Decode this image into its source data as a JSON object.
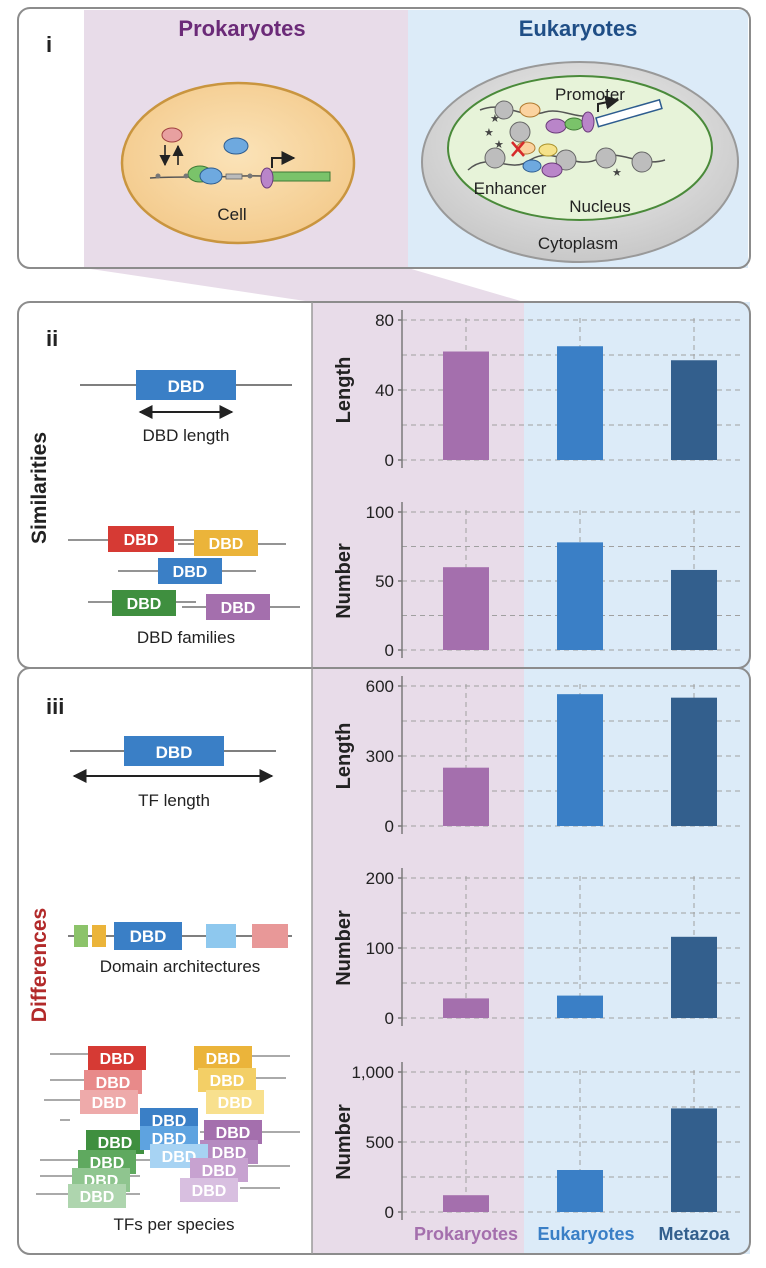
{
  "panel_i": {
    "label": "i",
    "prokaryotes_title": "Prokaryotes",
    "eukaryotes_title": "Eukaryotes",
    "cell_label": "Cell",
    "promoter_label": "Promoter",
    "enhancer_label": "Enhancer",
    "nucleus_label": "Nucleus",
    "cytoplasm_label": "Cytoplasm"
  },
  "panel_ii": {
    "label": "ii",
    "side_label": "Similarities",
    "dbd_length_caption": "DBD length",
    "dbd_families_caption": "DBD families",
    "dbd_text": "DBD"
  },
  "panel_iii": {
    "label": "iii",
    "side_label": "Differences",
    "tf_length_caption": "TF length",
    "domain_arch_caption": "Domain architectures",
    "tfs_per_species_caption": "TFs per species",
    "dbd_text": "DBD"
  },
  "colors": {
    "prokaryote_bg": "#e8dce9",
    "eukaryote_bg": "#dcebf8",
    "prokaryote_bar": "#a46fad",
    "eukaryote_bar": "#3a7fc6",
    "metazoa_bar": "#335f8d",
    "prokaryote_title": "#6b2a78",
    "eukaryote_title": "#1f4e86",
    "differences_red": "#b22a2a"
  },
  "x_labels": [
    "Prokaryotes",
    "Eukaryotes",
    "Metazoa"
  ],
  "chart_data": [
    {
      "type": "bar",
      "ylabel": "Length",
      "categories": [
        "Prokaryotes",
        "Eukaryotes",
        "Metazoa"
      ],
      "values": [
        62,
        65,
        57
      ],
      "ylim": [
        0,
        80
      ],
      "yticks": [
        "0",
        "40",
        "80"
      ],
      "tickvals": [
        0,
        40,
        80
      ]
    },
    {
      "type": "bar",
      "ylabel": "Number",
      "categories": [
        "Prokaryotes",
        "Eukaryotes",
        "Metazoa"
      ],
      "values": [
        60,
        78,
        58
      ],
      "ylim": [
        0,
        100
      ],
      "yticks": [
        "0",
        "50",
        "100"
      ],
      "tickvals": [
        0,
        50,
        100
      ]
    },
    {
      "type": "bar",
      "ylabel": "Length",
      "categories": [
        "Prokaryotes",
        "Eukaryotes",
        "Metazoa"
      ],
      "values": [
        250,
        565,
        550
      ],
      "ylim": [
        0,
        600
      ],
      "yticks": [
        "0",
        "300",
        "600"
      ],
      "tickvals": [
        0,
        300,
        600
      ]
    },
    {
      "type": "bar",
      "ylabel": "Number",
      "categories": [
        "Prokaryotes",
        "Eukaryotes",
        "Metazoa"
      ],
      "values": [
        28,
        32,
        116
      ],
      "ylim": [
        0,
        200
      ],
      "yticks": [
        "0",
        "100",
        "200"
      ],
      "tickvals": [
        0,
        100,
        200
      ]
    },
    {
      "type": "bar",
      "ylabel": "Number",
      "categories": [
        "Prokaryotes",
        "Eukaryotes",
        "Metazoa"
      ],
      "values": [
        120,
        300,
        740
      ],
      "ylim": [
        0,
        1000
      ],
      "yticks": [
        "0",
        "500",
        "1,000"
      ],
      "tickvals": [
        0,
        500,
        1000
      ]
    }
  ]
}
